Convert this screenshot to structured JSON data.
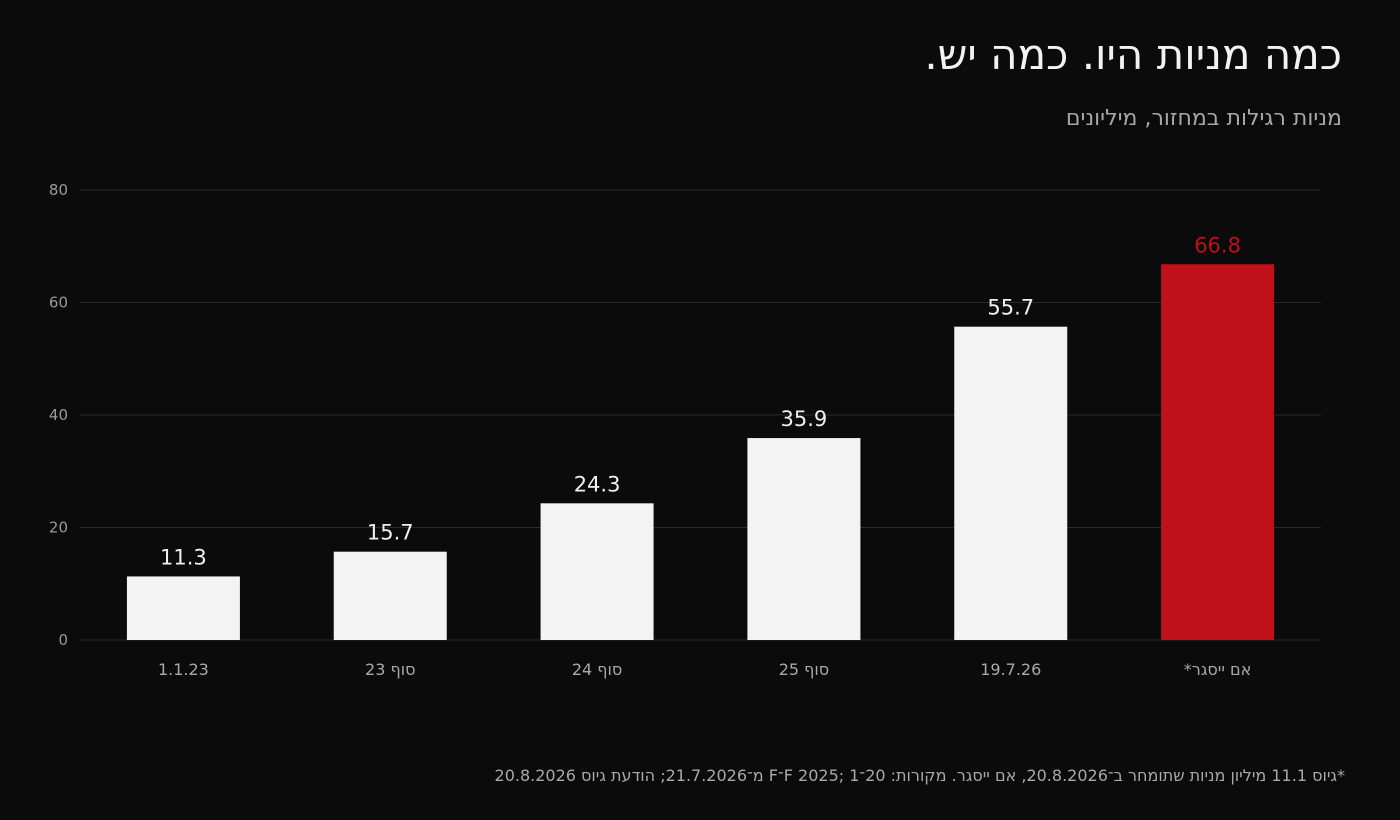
{
  "header": {
    "title": "כמה מניות היו. כמה יש.",
    "subtitle": "מניות רגילות במחזור, מיליונים"
  },
  "footnote": "*גיוס 11.1 מיליון מניות שתומחר ב־20.8.2026, אם ייסגר. מקורות: 20־F 2025; 1־F מ־21.7.2026; הודעת גיוס 20.8.2026",
  "colors": {
    "bar": "#f3f3f3",
    "highlight": "#c0111b",
    "grid": "#2a2a2a",
    "value_label": "#f0f0f0"
  },
  "chart_data": {
    "type": "bar",
    "categories": [
      "1.1.23",
      "סוף 23",
      "סוף 24",
      "סוף 25",
      "19.7.26",
      "אם ייסגר*"
    ],
    "values": [
      11.3,
      15.7,
      24.3,
      35.9,
      55.7,
      66.8
    ],
    "value_labels": [
      "11.3",
      "15.7",
      "24.3",
      "35.9",
      "55.7",
      "66.8"
    ],
    "highlight_index": 5,
    "ylim": [
      0,
      80
    ],
    "yticks": [
      0,
      20,
      40,
      60,
      80
    ],
    "grid": true,
    "legend": "none"
  }
}
